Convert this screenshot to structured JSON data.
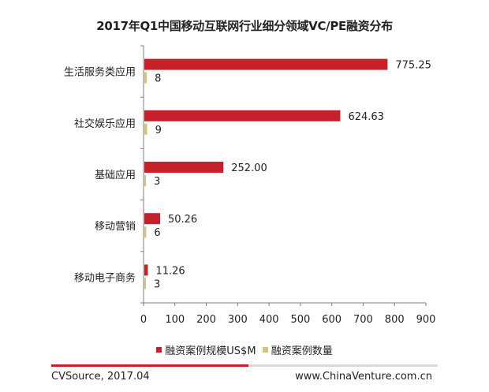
{
  "chart_data": {
    "type": "bar",
    "orientation": "horizontal",
    "title": "2017年Q1中国移动互联网行业细分领域VC/PE融资分布",
    "categories": [
      "生活服务类应用",
      "社交娱乐应用",
      "基础应用",
      "移动营销",
      "移动电子商务"
    ],
    "series": [
      {
        "name": "融资案例规模US$M",
        "values": [
          775.25,
          624.63,
          252.0,
          50.26,
          11.26
        ],
        "labels": [
          "775.25",
          "624.63",
          "252.00",
          "50.26",
          "11.26"
        ],
        "color": "#c8202a"
      },
      {
        "name": "融资案例数量",
        "values": [
          8,
          9,
          3,
          6,
          3
        ],
        "labels": [
          "8",
          "9",
          "3",
          "6",
          "3"
        ],
        "color": "#d4c47a"
      }
    ],
    "xlim": [
      0,
      900
    ],
    "xticks": [
      "0",
      "100",
      "200",
      "300",
      "400",
      "500",
      "600",
      "700",
      "800",
      "900"
    ],
    "grid": false,
    "legend_position": "bottom"
  },
  "footer": {
    "source": "CVSource, 2017.04",
    "site": "www.ChinaVenture.com.cn"
  }
}
